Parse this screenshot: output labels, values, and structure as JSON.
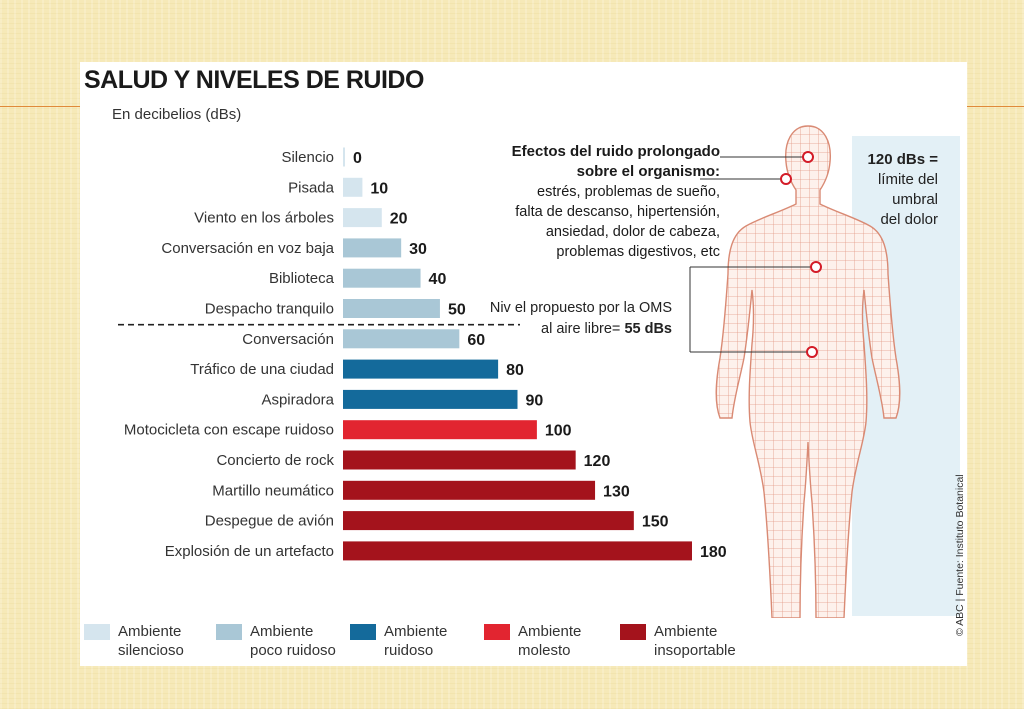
{
  "title": "SALUD Y NIVELES DE RUIDO",
  "subtitle": "En decibelios (dBs)",
  "colors": {
    "silencioso": "#d5e5ee",
    "poco_ruidoso": "#a9c7d6",
    "ruidoso": "#146a9b",
    "molesto": "#e22530",
    "insoportable": "#a4131c"
  },
  "chart_data": {
    "type": "bar",
    "orientation": "horizontal",
    "title": "SALUD Y NIVELES DE RUIDO",
    "subtitle": "En decibelios (dBs)",
    "categories": [
      "Silencio",
      "Pisada",
      "Viento en los árboles",
      "Conversación en voz baja",
      "Biblioteca",
      "Despacho tranquilo",
      "Conversación",
      "Tráfico de una ciudad",
      "Aspiradora",
      "Motocicleta con escape ruidoso",
      "Concierto de rock",
      "Martillo neumático",
      "Despegue de avión",
      "Explosión de un artefacto"
    ],
    "values": [
      0,
      10,
      20,
      30,
      40,
      50,
      60,
      80,
      90,
      100,
      120,
      130,
      150,
      180
    ],
    "value_labels": [
      "0",
      "10",
      "20",
      "30",
      "40",
      "50",
      "60",
      "80",
      "90",
      "100",
      "120",
      "130",
      "150",
      "180"
    ],
    "groups": [
      "silencioso",
      "silencioso",
      "silencioso",
      "poco_ruidoso",
      "poco_ruidoso",
      "poco_ruidoso",
      "poco_ruidoso",
      "ruidoso",
      "ruidoso",
      "molesto",
      "insoportable",
      "insoportable",
      "insoportable",
      "insoportable"
    ],
    "reference_line": {
      "value": 55,
      "label": "Niv el propuesto por la OMS al aire libre= 55 dBs"
    },
    "xlim": [
      0,
      180
    ],
    "grid": false
  },
  "effects": {
    "title_line1": "Efectos del ruido prolongado",
    "title_line2": "sobre el  organismo:",
    "lines": [
      "estrés, problemas de sueño,",
      "falta de descanso, hipertensión,",
      "ansiedad, dolor de cabeza,",
      "problemas digestivos, etc"
    ]
  },
  "limit": {
    "value": "120 dBs =",
    "lines": [
      "límite del",
      "umbral",
      "del dolor"
    ]
  },
  "oms": {
    "line1": "Niv el propuesto por la OMS",
    "line2_prefix": "al aire libre= ",
    "line2_value": "55 dBs"
  },
  "credit": "© ABC | Fuente: Instituto Botanical",
  "legend": [
    {
      "key": "silencioso",
      "line1": "Ambiente",
      "line2": "silencioso"
    },
    {
      "key": "poco_ruidoso",
      "line1": "Ambiente",
      "line2": "poco ruidoso"
    },
    {
      "key": "ruidoso",
      "line1": "Ambiente",
      "line2": "ruidoso"
    },
    {
      "key": "molesto",
      "line1": "Ambiente",
      "line2": "molesto"
    },
    {
      "key": "insoportable",
      "line1": "Ambiente",
      "line2": "insoportable"
    }
  ]
}
